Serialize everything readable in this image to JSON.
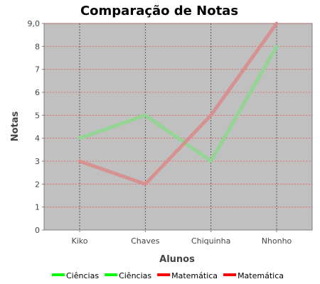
{
  "chart_data": {
    "type": "line",
    "title": "Comparação de Notas",
    "xlabel": "Alunos",
    "ylabel": "Notas",
    "categories": [
      "Kiko",
      "Chaves",
      "Chiquinha",
      "Nhonho"
    ],
    "ylim": [
      0,
      9.0
    ],
    "yticks": [
      {
        "value": 0,
        "label": "0"
      },
      {
        "value": 1,
        "label": "1"
      },
      {
        "value": 2,
        "label": "2"
      },
      {
        "value": 3,
        "label": "3"
      },
      {
        "value": 4,
        "label": "4"
      },
      {
        "value": 5,
        "label": "5"
      },
      {
        "value": 6,
        "label": "6"
      },
      {
        "value": 7,
        "label": "7"
      },
      {
        "value": 8,
        "label": "8"
      },
      {
        "value": 9,
        "label": "9,0"
      }
    ],
    "grid": true,
    "plot_background": "#c0c0c0",
    "series": [
      {
        "name": "Ciências",
        "values": [
          4,
          5,
          3,
          8
        ],
        "color": "#8fd68f"
      },
      {
        "name": "Matemática",
        "values": [
          3,
          2,
          5,
          9
        ],
        "color": "#d98c8c"
      }
    ],
    "legend": {
      "placement": "bottom",
      "entries": [
        {
          "label": "Ciências",
          "color": "#00ff00"
        },
        {
          "label": "Ciências",
          "color": "#00ff00"
        },
        {
          "label": "Matemática",
          "color": "#ff0000"
        },
        {
          "label": "Matemática",
          "color": "#ff0000"
        }
      ]
    }
  }
}
